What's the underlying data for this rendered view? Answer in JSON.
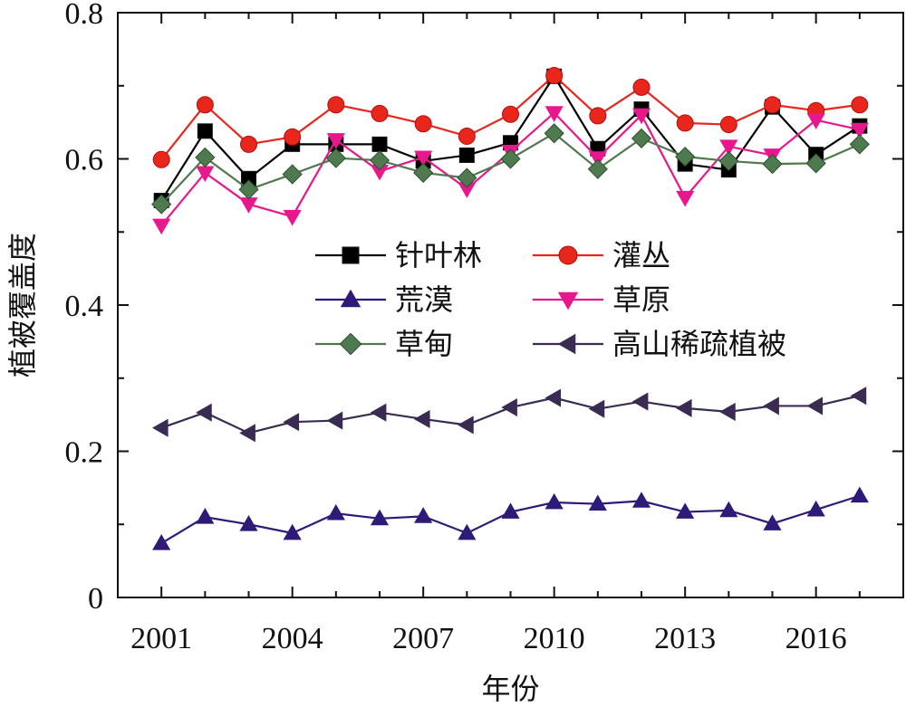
{
  "chart_data": {
    "type": "line",
    "xlabel": "年份",
    "ylabel": "植被覆盖度",
    "xlim": [
      2000,
      2018
    ],
    "ylim": [
      0,
      0.8
    ],
    "x": [
      2001,
      2002,
      2003,
      2004,
      2005,
      2006,
      2007,
      2008,
      2009,
      2010,
      2011,
      2012,
      2013,
      2014,
      2015,
      2016,
      2017
    ],
    "x_ticks": [
      "2001",
      "2004",
      "2007",
      "2010",
      "2013",
      "2016"
    ],
    "y_ticks": [
      "0",
      "0.2",
      "0.4",
      "0.6",
      "0.8"
    ],
    "grid": false,
    "legend_position": "center",
    "series": [
      {
        "name": "针叶林",
        "color": "#000000",
        "marker": "square",
        "values": [
          0.543,
          0.638,
          0.573,
          0.62,
          0.62,
          0.62,
          0.597,
          0.605,
          0.622,
          0.713,
          0.614,
          0.668,
          0.593,
          0.585,
          0.671,
          0.606,
          0.645
        ]
      },
      {
        "name": "灌丛",
        "color": "#e8261c",
        "marker": "circle",
        "values": [
          0.599,
          0.674,
          0.62,
          0.63,
          0.674,
          0.662,
          0.648,
          0.631,
          0.661,
          0.714,
          0.659,
          0.698,
          0.649,
          0.647,
          0.674,
          0.666,
          0.674
        ]
      },
      {
        "name": "荒漠",
        "color": "#2f1a7a",
        "marker": "triangle-up",
        "values": [
          0.074,
          0.11,
          0.1,
          0.088,
          0.115,
          0.108,
          0.111,
          0.088,
          0.117,
          0.13,
          0.128,
          0.132,
          0.117,
          0.119,
          0.101,
          0.12,
          0.139
        ]
      },
      {
        "name": "草原",
        "color": "#e8188c",
        "marker": "triangle-down",
        "values": [
          0.509,
          0.581,
          0.538,
          0.521,
          0.626,
          0.583,
          0.602,
          0.559,
          0.61,
          0.663,
          0.601,
          0.66,
          0.547,
          0.617,
          0.605,
          0.653,
          0.64
        ]
      },
      {
        "name": "草甸",
        "color": "#4f7a4f",
        "marker": "diamond",
        "values": [
          0.538,
          0.602,
          0.558,
          0.579,
          0.601,
          0.598,
          0.581,
          0.574,
          0.6,
          0.635,
          0.586,
          0.628,
          0.603,
          0.597,
          0.593,
          0.594,
          0.62
        ]
      },
      {
        "name": "高山稀疏植被",
        "color": "#3a2b52",
        "marker": "triangle-left",
        "values": [
          0.232,
          0.253,
          0.225,
          0.24,
          0.242,
          0.253,
          0.244,
          0.236,
          0.26,
          0.273,
          0.258,
          0.268,
          0.259,
          0.254,
          0.262,
          0.262,
          0.276
        ]
      }
    ]
  }
}
